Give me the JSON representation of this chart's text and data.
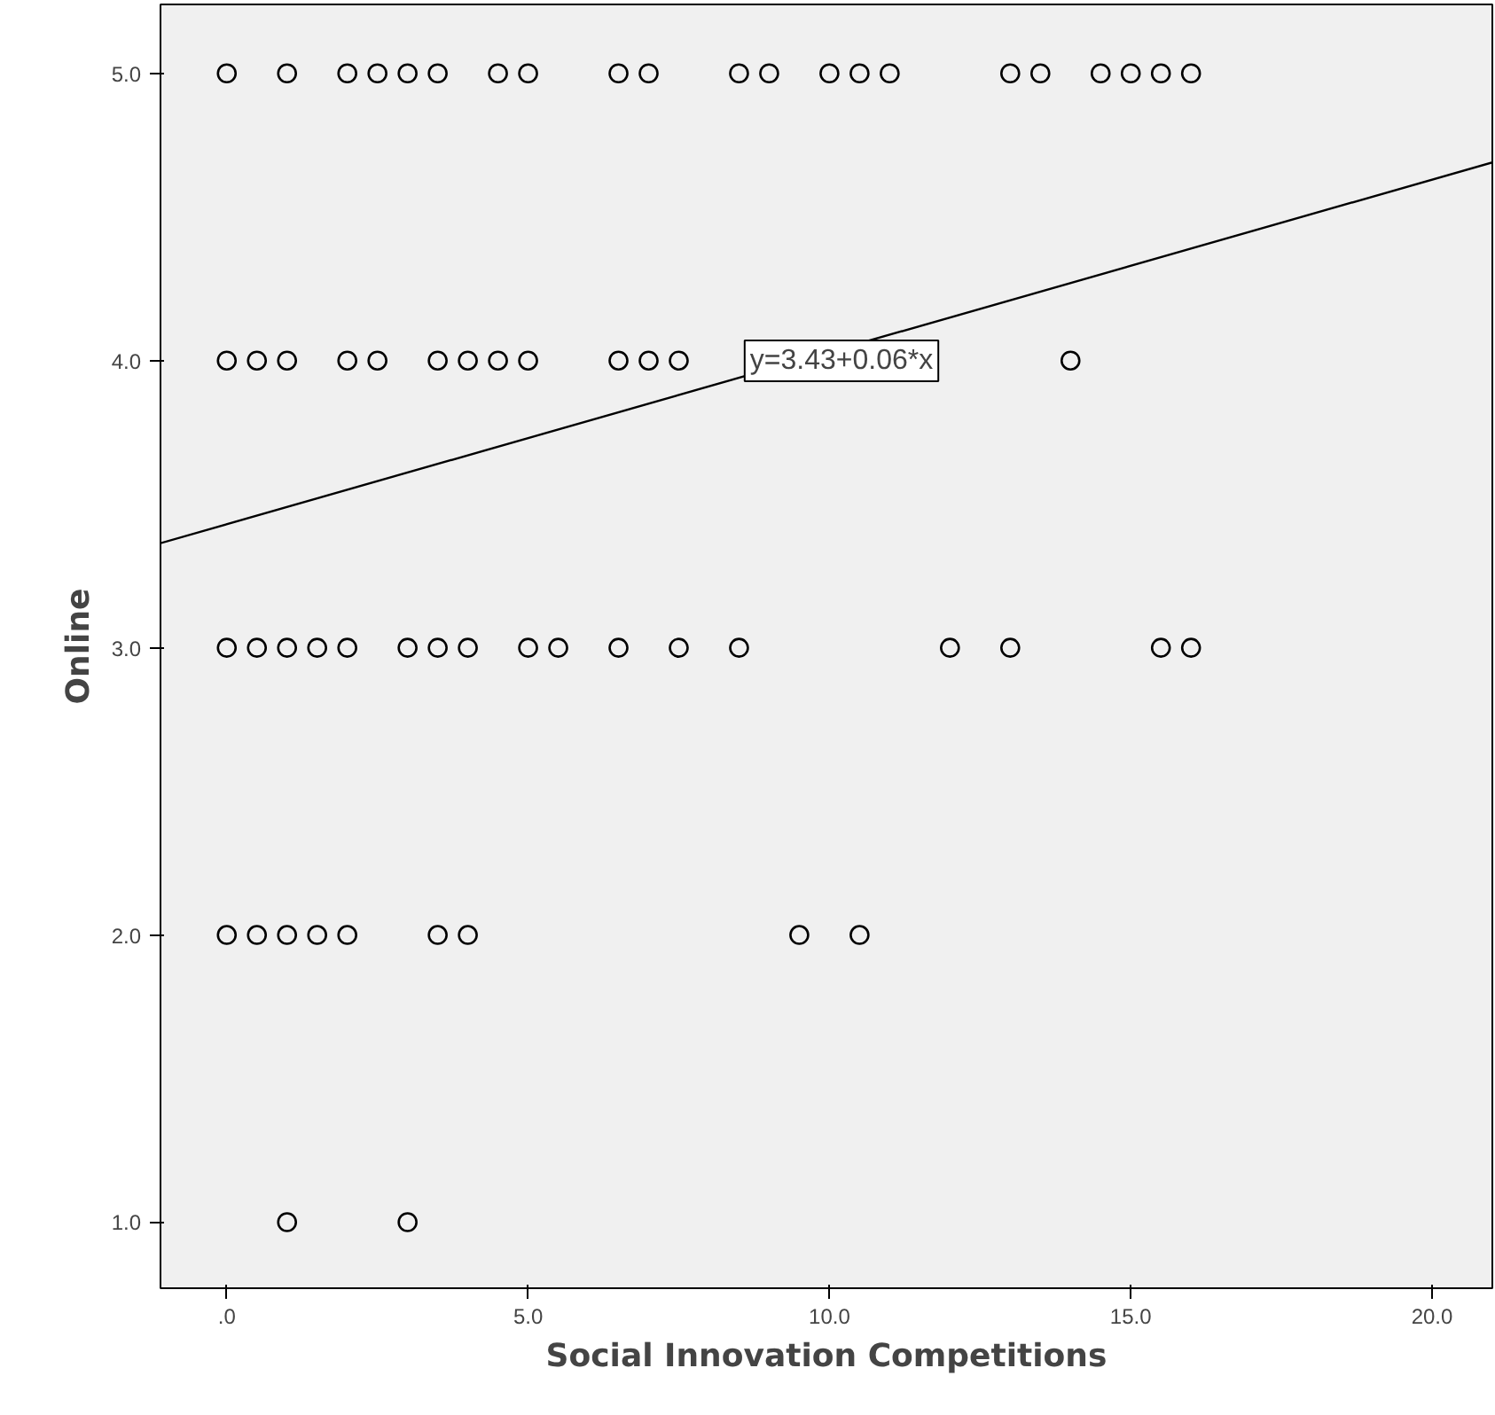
{
  "chart_data": {
    "type": "scatter",
    "xlabel": "Social Innovation Competitions",
    "ylabel": "Online",
    "xlim": [
      -1.1,
      21
    ],
    "ylim": [
      0.77,
      5.24
    ],
    "xticks": [
      {
        "value": 0,
        "label": ".0"
      },
      {
        "value": 5,
        "label": "5.0"
      },
      {
        "value": 10,
        "label": "10.0"
      },
      {
        "value": 15,
        "label": "15.0"
      },
      {
        "value": 20,
        "label": "20.0"
      }
    ],
    "yticks": [
      {
        "value": 1,
        "label": "1.0"
      },
      {
        "value": 2,
        "label": "2.0"
      },
      {
        "value": 3,
        "label": "3.0"
      },
      {
        "value": 4,
        "label": "4.0"
      },
      {
        "value": 5,
        "label": "5.0"
      }
    ],
    "grid": false,
    "annotations": [
      "y=3.43+0.06*x"
    ],
    "series": [
      {
        "marker": "circle",
        "color": "#000000",
        "x": [
          0,
          1,
          2,
          2.5,
          3,
          3.5,
          4.5,
          5,
          6.5,
          7,
          8.5,
          9,
          10,
          10.5,
          11,
          13,
          13.5,
          14.5,
          15,
          15.5,
          16,
          0,
          0.5,
          1,
          2,
          2.5,
          3.5,
          4,
          4.5,
          5,
          6.5,
          7,
          7.5,
          14,
          0,
          0.5,
          1,
          1.5,
          2,
          3,
          3.5,
          4,
          5,
          5.5,
          6.5,
          7.5,
          8.5,
          12,
          13,
          15.5,
          16,
          0,
          0.5,
          1,
          1.5,
          2,
          3.5,
          4,
          9.5,
          10.5,
          1,
          3
        ],
        "values": [
          5,
          5,
          5,
          5,
          5,
          5,
          5,
          5,
          5,
          5,
          5,
          5,
          5,
          5,
          5,
          5,
          5,
          5,
          5,
          5,
          5,
          4,
          4,
          4,
          4,
          4,
          4,
          4,
          4,
          4,
          4,
          4,
          4,
          4,
          3,
          3,
          3,
          3,
          3,
          3,
          3,
          3,
          3,
          3,
          3,
          3,
          3,
          3,
          3,
          3,
          3,
          2,
          2,
          2,
          2,
          2,
          2,
          2,
          2,
          2,
          1,
          1
        ]
      },
      {
        "type": "line",
        "color": "#000000",
        "x": [
          -1.1,
          21
        ],
        "values": [
          3.364,
          4.69
        ],
        "line_style": "solid"
      }
    ]
  }
}
